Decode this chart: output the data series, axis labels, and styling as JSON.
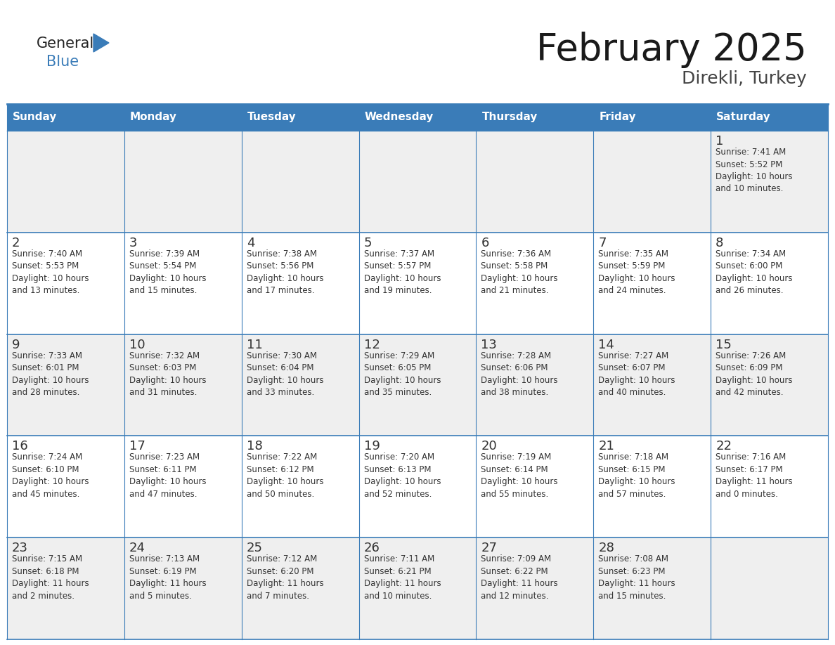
{
  "title": "February 2025",
  "subtitle": "Direkli, Turkey",
  "days_of_week": [
    "Sunday",
    "Monday",
    "Tuesday",
    "Wednesday",
    "Thursday",
    "Friday",
    "Saturday"
  ],
  "header_bg": "#3A7CB8",
  "header_text": "#FFFFFF",
  "cell_bg_light": "#EFEFEF",
  "cell_bg_white": "#FFFFFF",
  "border_color": "#3A7CB8",
  "day_number_color": "#333333",
  "cell_text_color": "#333333",
  "title_color": "#1a1a1a",
  "subtitle_color": "#444444",
  "logo_general_color": "#222222",
  "logo_blue_color": "#3A7CB8",
  "weeks": [
    [
      {
        "day": null,
        "info": null
      },
      {
        "day": null,
        "info": null
      },
      {
        "day": null,
        "info": null
      },
      {
        "day": null,
        "info": null
      },
      {
        "day": null,
        "info": null
      },
      {
        "day": null,
        "info": null
      },
      {
        "day": 1,
        "info": "Sunrise: 7:41 AM\nSunset: 5:52 PM\nDaylight: 10 hours\nand 10 minutes."
      }
    ],
    [
      {
        "day": 2,
        "info": "Sunrise: 7:40 AM\nSunset: 5:53 PM\nDaylight: 10 hours\nand 13 minutes."
      },
      {
        "day": 3,
        "info": "Sunrise: 7:39 AM\nSunset: 5:54 PM\nDaylight: 10 hours\nand 15 minutes."
      },
      {
        "day": 4,
        "info": "Sunrise: 7:38 AM\nSunset: 5:56 PM\nDaylight: 10 hours\nand 17 minutes."
      },
      {
        "day": 5,
        "info": "Sunrise: 7:37 AM\nSunset: 5:57 PM\nDaylight: 10 hours\nand 19 minutes."
      },
      {
        "day": 6,
        "info": "Sunrise: 7:36 AM\nSunset: 5:58 PM\nDaylight: 10 hours\nand 21 minutes."
      },
      {
        "day": 7,
        "info": "Sunrise: 7:35 AM\nSunset: 5:59 PM\nDaylight: 10 hours\nand 24 minutes."
      },
      {
        "day": 8,
        "info": "Sunrise: 7:34 AM\nSunset: 6:00 PM\nDaylight: 10 hours\nand 26 minutes."
      }
    ],
    [
      {
        "day": 9,
        "info": "Sunrise: 7:33 AM\nSunset: 6:01 PM\nDaylight: 10 hours\nand 28 minutes."
      },
      {
        "day": 10,
        "info": "Sunrise: 7:32 AM\nSunset: 6:03 PM\nDaylight: 10 hours\nand 31 minutes."
      },
      {
        "day": 11,
        "info": "Sunrise: 7:30 AM\nSunset: 6:04 PM\nDaylight: 10 hours\nand 33 minutes."
      },
      {
        "day": 12,
        "info": "Sunrise: 7:29 AM\nSunset: 6:05 PM\nDaylight: 10 hours\nand 35 minutes."
      },
      {
        "day": 13,
        "info": "Sunrise: 7:28 AM\nSunset: 6:06 PM\nDaylight: 10 hours\nand 38 minutes."
      },
      {
        "day": 14,
        "info": "Sunrise: 7:27 AM\nSunset: 6:07 PM\nDaylight: 10 hours\nand 40 minutes."
      },
      {
        "day": 15,
        "info": "Sunrise: 7:26 AM\nSunset: 6:09 PM\nDaylight: 10 hours\nand 42 minutes."
      }
    ],
    [
      {
        "day": 16,
        "info": "Sunrise: 7:24 AM\nSunset: 6:10 PM\nDaylight: 10 hours\nand 45 minutes."
      },
      {
        "day": 17,
        "info": "Sunrise: 7:23 AM\nSunset: 6:11 PM\nDaylight: 10 hours\nand 47 minutes."
      },
      {
        "day": 18,
        "info": "Sunrise: 7:22 AM\nSunset: 6:12 PM\nDaylight: 10 hours\nand 50 minutes."
      },
      {
        "day": 19,
        "info": "Sunrise: 7:20 AM\nSunset: 6:13 PM\nDaylight: 10 hours\nand 52 minutes."
      },
      {
        "day": 20,
        "info": "Sunrise: 7:19 AM\nSunset: 6:14 PM\nDaylight: 10 hours\nand 55 minutes."
      },
      {
        "day": 21,
        "info": "Sunrise: 7:18 AM\nSunset: 6:15 PM\nDaylight: 10 hours\nand 57 minutes."
      },
      {
        "day": 22,
        "info": "Sunrise: 7:16 AM\nSunset: 6:17 PM\nDaylight: 11 hours\nand 0 minutes."
      }
    ],
    [
      {
        "day": 23,
        "info": "Sunrise: 7:15 AM\nSunset: 6:18 PM\nDaylight: 11 hours\nand 2 minutes."
      },
      {
        "day": 24,
        "info": "Sunrise: 7:13 AM\nSunset: 6:19 PM\nDaylight: 11 hours\nand 5 minutes."
      },
      {
        "day": 25,
        "info": "Sunrise: 7:12 AM\nSunset: 6:20 PM\nDaylight: 11 hours\nand 7 minutes."
      },
      {
        "day": 26,
        "info": "Sunrise: 7:11 AM\nSunset: 6:21 PM\nDaylight: 11 hours\nand 10 minutes."
      },
      {
        "day": 27,
        "info": "Sunrise: 7:09 AM\nSunset: 6:22 PM\nDaylight: 11 hours\nand 12 minutes."
      },
      {
        "day": 28,
        "info": "Sunrise: 7:08 AM\nSunset: 6:23 PM\nDaylight: 11 hours\nand 15 minutes."
      },
      {
        "day": null,
        "info": null
      }
    ]
  ],
  "row_bg_pattern": [
    1,
    0,
    1,
    0,
    1
  ]
}
